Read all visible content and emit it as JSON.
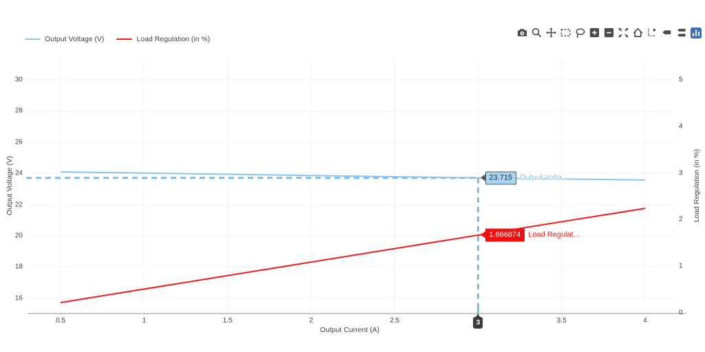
{
  "legend": {
    "items": [
      {
        "label": "Output Voltage (V)",
        "color": "#8cc3ec"
      },
      {
        "label": "Load Regulation (in %)",
        "color": "#f21b1b"
      }
    ]
  },
  "modebar": {
    "icons": [
      "camera-icon",
      "zoom-icon",
      "pan-icon",
      "box-select-icon",
      "lasso-select-icon",
      "zoom-in-icon",
      "zoom-out-icon",
      "autoscale-icon",
      "reset-axes-icon",
      "toggle-spikelines-icon",
      "hover-closest-icon",
      "hover-compare-icon",
      "plotly-logo-icon"
    ],
    "icon_color": "#4a4a4a",
    "logo_color": "#3d6dbc"
  },
  "chart_data": {
    "type": "line",
    "x_axis": {
      "title": "Output Current (A)",
      "tick_values": [
        0.5,
        1,
        1.5,
        2,
        2.5,
        3,
        3.5,
        4
      ],
      "tick_labels": [
        "0.5",
        "1",
        "1.5",
        "2",
        "2.5",
        "3",
        "3.5",
        "4"
      ],
      "range": [
        0.302,
        4.165
      ]
    },
    "y_axis_left": {
      "title": "Output Voltage (V)",
      "tick_values": [
        16,
        18,
        20,
        22,
        24,
        26,
        28,
        30
      ],
      "tick_labels": [
        "16",
        "18",
        "20",
        "22",
        "24",
        "26",
        "28",
        "30"
      ],
      "range": [
        15.07,
        31.37
      ]
    },
    "y_axis_right": {
      "title": "Load Regulation (in %)",
      "tick_values": [
        0,
        1,
        2,
        3,
        4,
        5
      ],
      "tick_labels": [
        "0",
        "1",
        "2",
        "3",
        "4",
        "5"
      ],
      "range": [
        0,
        5.457
      ]
    },
    "series": [
      {
        "name": "Output Voltage (V)",
        "axis": "left",
        "color": "#8cc3ec",
        "x": [
          0.5,
          3,
          4
        ],
        "y": [
          24.1,
          23.715,
          23.58
        ]
      },
      {
        "name": "Load Regulation (in %)",
        "axis": "right",
        "color": "#f21b1b",
        "x": [
          0.5,
          3,
          4
        ],
        "y": [
          0.22,
          1.666874,
          2.24
        ]
      }
    ],
    "hover": {
      "x": 3,
      "x_badge_label": "3",
      "points": [
        {
          "series": "Output Voltage (V)",
          "axis": "left",
          "value": 23.715,
          "value_label": "23.715",
          "trace_label": "Output Volta...",
          "bg_color": "#a9d6f4",
          "text_color": "#2b2b2b",
          "border_color": "#555555"
        },
        {
          "series": "Load Regulation (in %)",
          "axis": "right",
          "value": 1.666874,
          "value_label": "1.666874",
          "trace_label": "Load Regulat...",
          "bg_color": "#f01010",
          "text_color": "#ffffff",
          "border_color": "#f01010"
        }
      ]
    },
    "style": {
      "grid_color": "#f4f4f4",
      "axis_line_color": "#c9c9c9",
      "tick_color": "#444444",
      "spike_color": "#74bff2",
      "background": "#ffffff"
    }
  }
}
